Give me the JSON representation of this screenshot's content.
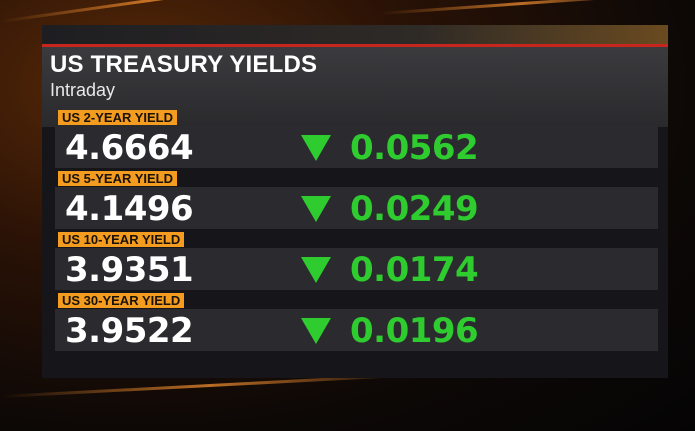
{
  "header": {
    "title": "US TREASURY YIELDS",
    "subtitle": "Intraday"
  },
  "table": {
    "rows": [
      {
        "label": "US 2-YEAR YIELD",
        "value": 4.6664,
        "change": 0.0562
      },
      {
        "label": "US 5-YEAR YIELD",
        "value": 4.1496,
        "change": 0.0249
      },
      {
        "label": "US 10-YEAR YIELD",
        "value": 3.9351,
        "change": 0.0174
      },
      {
        "label": "US 30-YEAR YIELD",
        "value": 3.9522,
        "change": 0.0196
      }
    ]
  }
}
